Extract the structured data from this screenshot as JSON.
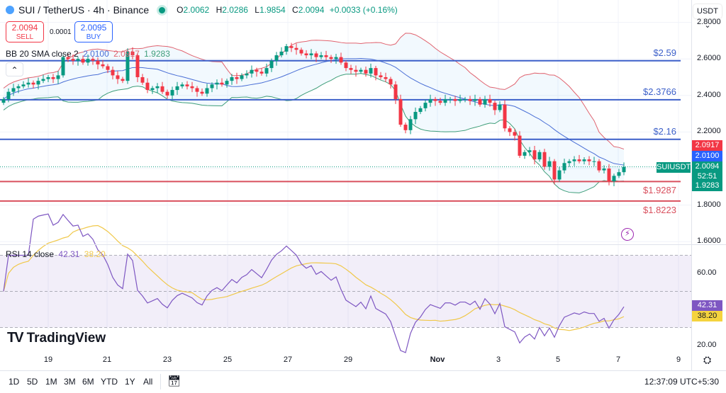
{
  "header": {
    "symbol": "SUI / TetherUS · 4h · Binance",
    "open_label": "O",
    "open": "2.0062",
    "high_label": "H",
    "high": "2.0286",
    "low_label": "L",
    "low": "1.9854",
    "close_label": "C",
    "close": "2.0094",
    "change": "+0.0033 (+0.16%)"
  },
  "trade": {
    "sell_price": "2.0094",
    "sell_label": "SELL",
    "spread": "0.0001",
    "buy_price": "2.0095",
    "buy_label": "BUY"
  },
  "bb_legend": {
    "name": "BB 20 SMA close 2",
    "basis": "2.0100",
    "upper": "2.0917",
    "lower": "1.9283"
  },
  "collapse_icon": "chevron-up",
  "currency": "USDT ⌄",
  "hlines": [
    {
      "price": 2.59,
      "label": "$2.59",
      "color": "#3b5fc9"
    },
    {
      "price": 2.3766,
      "label": "$2.3766",
      "color": "#3b5fc9"
    },
    {
      "price": 2.16,
      "label": "$2.16",
      "color": "#3b5fc9"
    },
    {
      "price": 1.9287,
      "label": "$1.9287",
      "color": "#d9505e"
    },
    {
      "price": 1.8223,
      "label": "$1.8223",
      "color": "#d9505e"
    }
  ],
  "price_tags": {
    "upper": "2.0917",
    "basis": "2.0100",
    "last": "2.0094",
    "countdown": "52:51",
    "lower": "1.9283",
    "symbol": "SUIUSDT"
  },
  "rsi_legend": {
    "name": "RSI 14 close",
    "rsi": "42.31",
    "ma": "38.20"
  },
  "rsi_tags": {
    "rsi": "42.31",
    "ma": "38.20"
  },
  "colors": {
    "up": "#089981",
    "down": "#f23645",
    "bb_upper": "#e0636f",
    "bb_basis": "#4a6fd6",
    "bb_lower": "#3f9e7a",
    "rsi": "#7e57c2",
    "rsi_ma": "#f0c84a"
  },
  "brand": "TradingView",
  "time_axis": [
    "19",
    "21",
    "23",
    "25",
    "27",
    "29",
    "Nov",
    "3",
    "5",
    "7",
    "9"
  ],
  "ranges": [
    "1D",
    "5D",
    "1M",
    "3M",
    "6M",
    "YTD",
    "1Y",
    "All"
  ],
  "clock": "12:37:09 UTC+5:30",
  "chart_data": {
    "type": "candlestick",
    "interval": "4h",
    "price_axis": {
      "ticks": [
        "2.8000",
        "2.6000",
        "2.4000",
        "2.2000",
        "1.8000",
        "1.6000"
      ],
      "range": [
        1.6,
        2.8
      ]
    },
    "rsi_axis": {
      "ticks": [
        "60.00",
        "20.00"
      ],
      "bands": [
        30,
        50,
        70
      ]
    },
    "closes": [
      2.38,
      2.42,
      2.44,
      2.45,
      2.46,
      2.47,
      2.46,
      2.48,
      2.49,
      2.5,
      2.49,
      2.51,
      2.61,
      2.6,
      2.59,
      2.6,
      2.58,
      2.6,
      2.59,
      2.57,
      2.56,
      2.54,
      2.51,
      2.49,
      2.48,
      2.64,
      2.62,
      2.5,
      2.47,
      2.43,
      2.44,
      2.45,
      2.42,
      2.4,
      2.43,
      2.45,
      2.46,
      2.45,
      2.44,
      2.42,
      2.41,
      2.44,
      2.46,
      2.47,
      2.46,
      2.48,
      2.5,
      2.49,
      2.51,
      2.52,
      2.54,
      2.53,
      2.52,
      2.55,
      2.59,
      2.62,
      2.64,
      2.67,
      2.66,
      2.65,
      2.63,
      2.62,
      2.63,
      2.61,
      2.62,
      2.61,
      2.6,
      2.61,
      2.58,
      2.55,
      2.54,
      2.53,
      2.54,
      2.52,
      2.55,
      2.51,
      2.5,
      2.49,
      2.46,
      2.38,
      2.24,
      2.21,
      2.27,
      2.31,
      2.33,
      2.36,
      2.38,
      2.37,
      2.36,
      2.38,
      2.38,
      2.37,
      2.38,
      2.38,
      2.37,
      2.38,
      2.35,
      2.38,
      2.36,
      2.32,
      2.35,
      2.22,
      2.2,
      2.18,
      2.07,
      2.09,
      2.1,
      2.05,
      2.09,
      2.01,
      2.04,
      1.94,
      1.99,
      2.03,
      2.04,
      2.05,
      2.04,
      2.05,
      2.04,
      2.04,
      1.99,
      2.0,
      1.93,
      1.96,
      1.98,
      2.0094
    ]
  }
}
